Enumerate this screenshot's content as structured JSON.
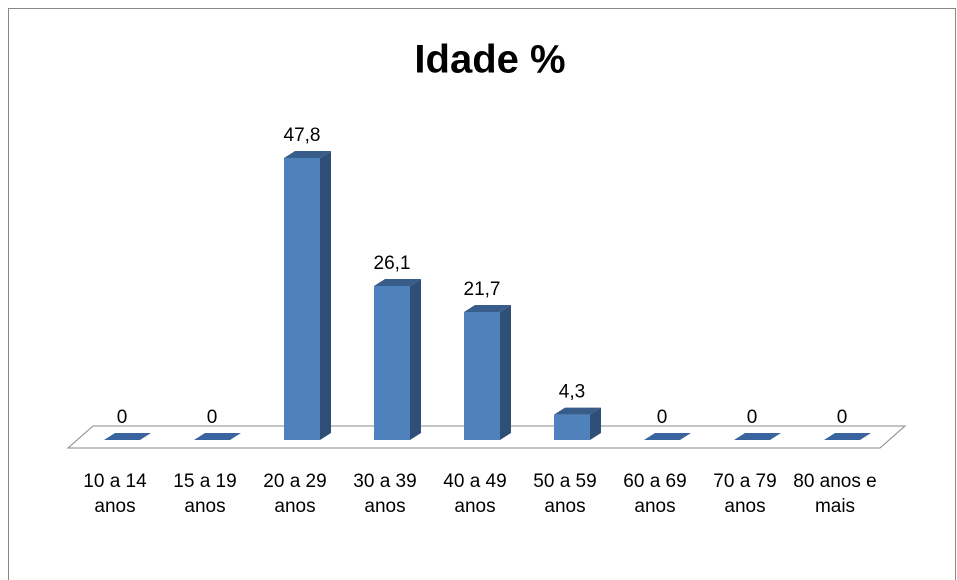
{
  "chart_data": {
    "type": "bar3d",
    "title": "Idade %",
    "categories": [
      "10 a 14 anos",
      "15 a 19 anos",
      "20 a 29 anos",
      "30 a 39 anos",
      "40 a 49 anos",
      "50 a 59 anos",
      "60 a 69 anos",
      "70 a 79 anos",
      "80 anos e mais"
    ],
    "values": [
      0,
      0,
      47.8,
      26.1,
      21.7,
      4.3,
      0,
      0,
      0
    ],
    "value_labels": [
      "0",
      "0",
      "47,8",
      "26,1",
      "21,7",
      "4,3",
      "0",
      "0",
      "0"
    ],
    "color": "#4f81bd"
  }
}
